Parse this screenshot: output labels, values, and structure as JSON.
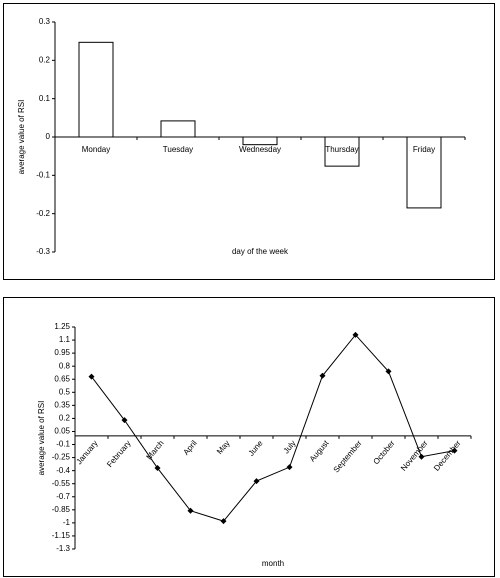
{
  "chart_data": [
    {
      "type": "bar",
      "xlabel": "day of the week",
      "ylabel": "average value of RSI",
      "categories": [
        "Monday",
        "Tuesday",
        "Wednesday",
        "Thursday",
        "Friday"
      ],
      "values": [
        0.247,
        0.042,
        -0.02,
        -0.076,
        -0.185
      ],
      "color": "#ffffff",
      "ylim": [
        -0.3,
        0.3
      ],
      "yticks": [
        -0.3,
        -0.2,
        -0.1,
        0,
        0.1,
        0.2,
        0.3
      ],
      "grid": false
    },
    {
      "type": "line",
      "xlabel": "month",
      "ylabel": "average value of RSI",
      "categories": [
        "January",
        "February",
        "March",
        "April",
        "May",
        "June",
        "July",
        "August",
        "September",
        "October",
        "November",
        "December"
      ],
      "values": [
        0.68,
        0.18,
        -0.37,
        -0.86,
        -0.98,
        -0.52,
        -0.36,
        0.69,
        1.16,
        0.74,
        -0.24,
        -0.17
      ],
      "color": "#000000",
      "ylim": [
        -1.3,
        1.25
      ],
      "yticks": [
        -1.3,
        -1.15,
        -1,
        -0.85,
        -0.7,
        -0.55,
        -0.4,
        -0.25,
        -0.1,
        0.05,
        0.2,
        0.35,
        0.5,
        0.65,
        0.8,
        0.95,
        1.1,
        1.25
      ],
      "grid": false
    }
  ]
}
